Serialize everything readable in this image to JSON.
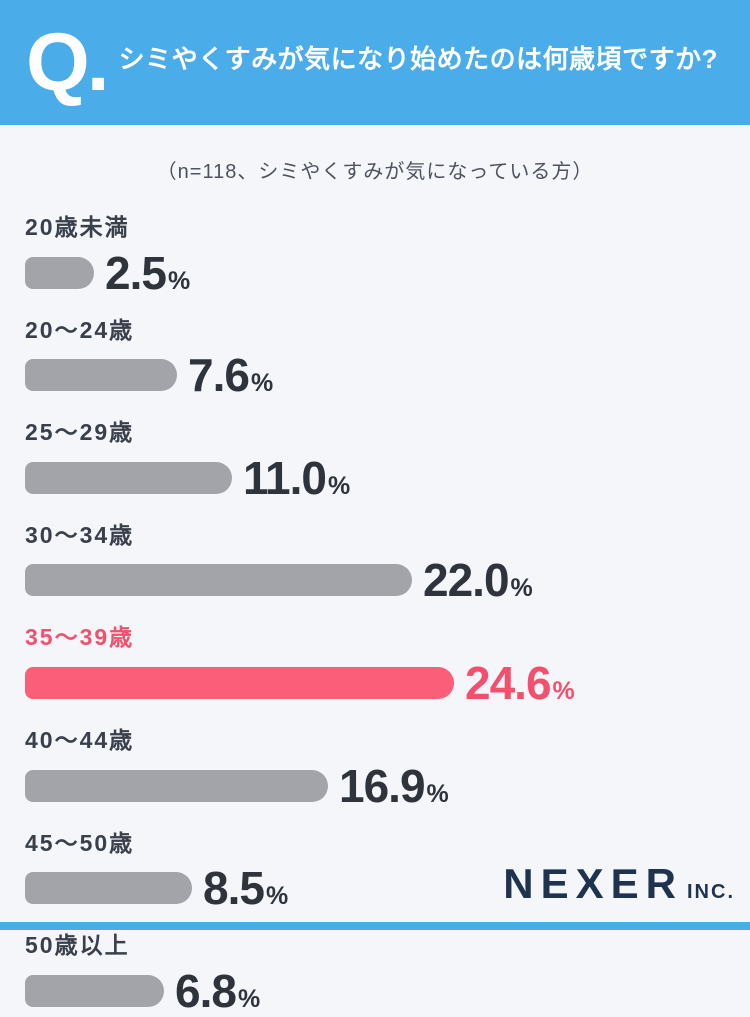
{
  "header": {
    "q_label": "Q.",
    "title": "シミやくすみが気になり始めたのは何歳頃ですか?"
  },
  "subtitle": "（n=118、シミやくすみが気になっている方）",
  "chart_data": {
    "type": "bar",
    "orientation": "horizontal",
    "title": "シミやくすみが気になり始めたのは何歳頃ですか?",
    "note": "（n=118、シミやくすみが気になっている方）",
    "categories": [
      "20歳未満",
      "20〜24歳",
      "25〜29歳",
      "30〜34歳",
      "35〜39歳",
      "40〜44歳",
      "45〜50歳",
      "50歳以上"
    ],
    "values": [
      2.5,
      7.6,
      11.0,
      22.0,
      24.6,
      16.9,
      8.5,
      6.8
    ],
    "value_labels": [
      "2.5",
      "7.6",
      "11.0",
      "22.0",
      "24.6",
      "16.9",
      "8.5",
      "6.8"
    ],
    "unit": "%",
    "highlight_index": 4,
    "xlim": [
      0,
      26
    ],
    "grid": false,
    "legend": false,
    "colors": {
      "bar": "#a3a4a9",
      "highlight_bar": "#fa5e78",
      "label": "#3a404b",
      "highlight_text": "#f4506e",
      "value_text": "#2e333c"
    }
  },
  "footer": {
    "logo_text": "NEXER",
    "logo_suffix": "INC."
  },
  "colors": {
    "header_background": "#4aace8",
    "page_background": "#f5f6fa",
    "header_text": "#ffffff",
    "logo_text": "#1d3350",
    "bottom_accent": "#4aace8"
  }
}
